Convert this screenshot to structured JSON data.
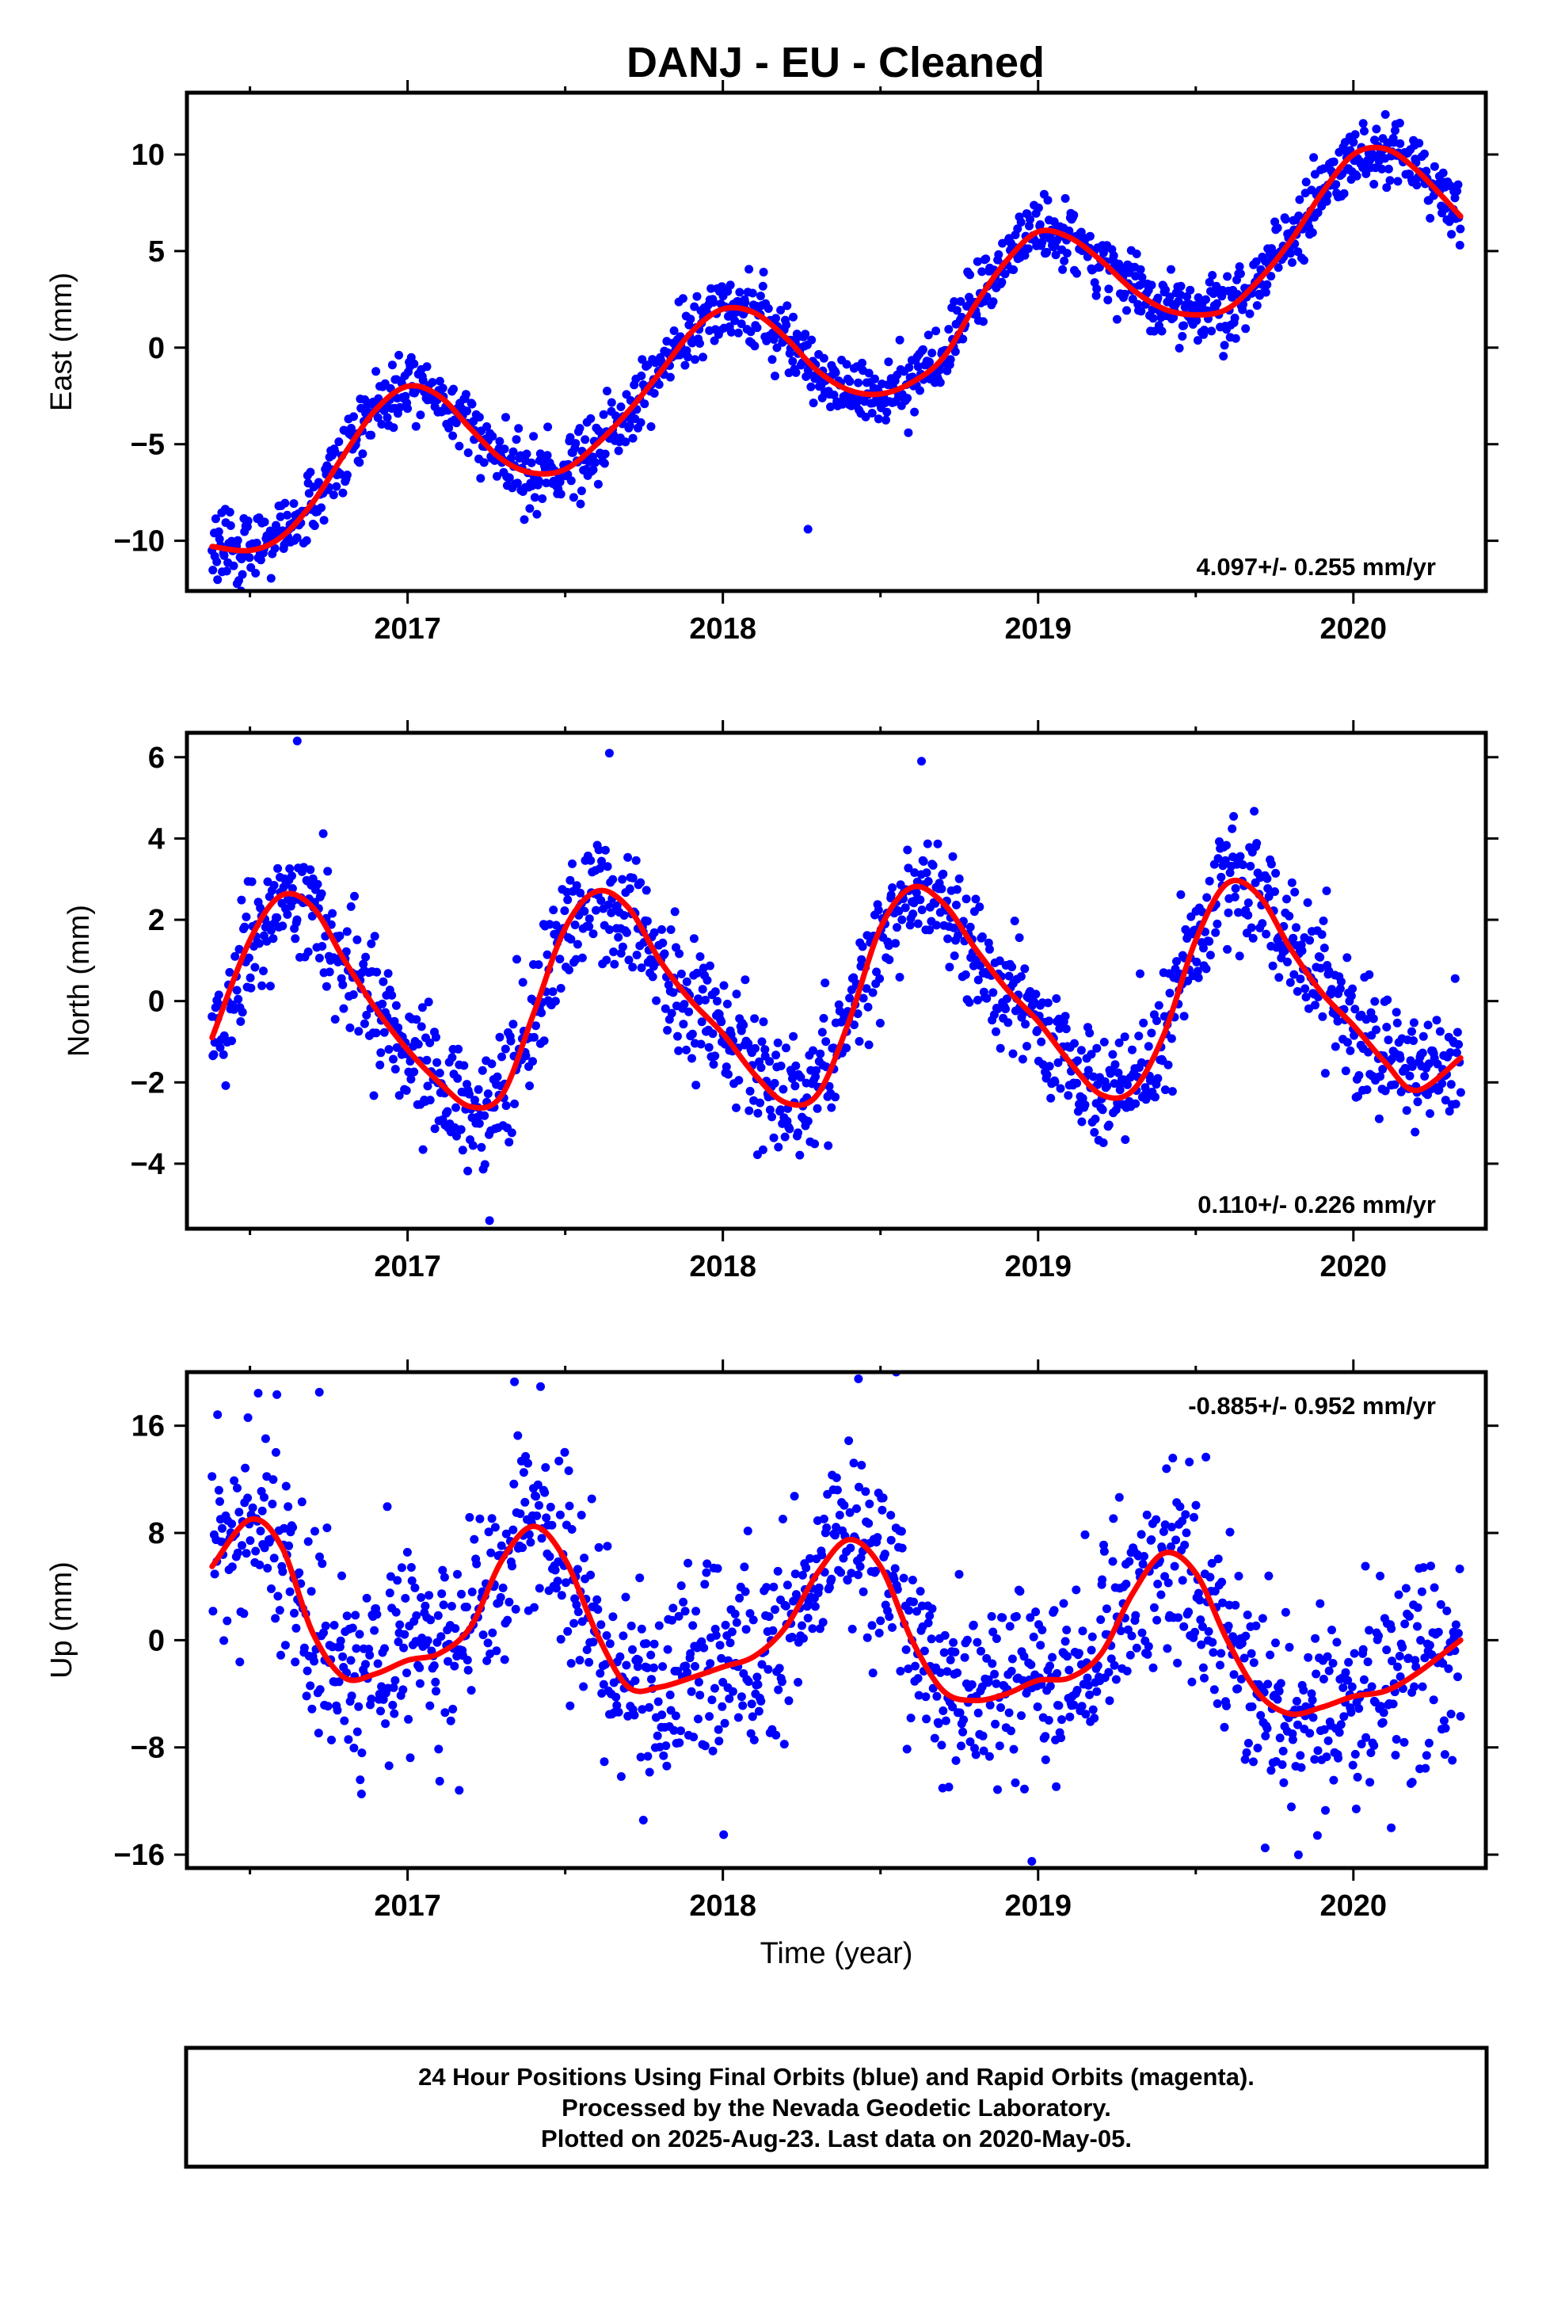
{
  "title": "DANJ  - EU - Cleaned",
  "footer": {
    "line1": "24 Hour Positions Using Final Orbits (blue) and Rapid Orbits (magenta).",
    "line2": "Processed by the Nevada Geodetic Laboratory.",
    "line3": "Plotted on 2025-Aug-23. Last data on 2020-May-05."
  },
  "colors": {
    "final_orbits": "#0000ff",
    "fit": "#ff0000"
  },
  "chart_data": [
    {
      "type": "scatter",
      "name": "east",
      "ylabel": "East (mm)",
      "xlabel": "",
      "xlim": [
        2016.3,
        2020.42
      ],
      "ylim": [
        -12.6,
        13.2
      ],
      "xticks": [
        2017,
        2018,
        2019,
        2020
      ],
      "yticks": [
        -10,
        -5,
        0,
        5,
        10
      ],
      "ytick_labels": [
        "−10",
        "−5",
        "0",
        "5",
        "10"
      ],
      "rate_label": "4.097+/- 0.255 mm/yr",
      "rate_position": "bottom-right",
      "data_start": 2016.38,
      "data_end": 2020.34,
      "fit": {
        "x": [
          2016.38,
          2016.5,
          2016.6,
          2016.7,
          2016.8,
          2016.9,
          2017.0,
          2017.1,
          2017.2,
          2017.3,
          2017.4,
          2017.5,
          2017.6,
          2017.7,
          2017.8,
          2017.9,
          2018.0,
          2018.1,
          2018.2,
          2018.3,
          2018.4,
          2018.5,
          2018.6,
          2018.7,
          2018.8,
          2018.9,
          2019.0,
          2019.1,
          2019.2,
          2019.3,
          2019.4,
          2019.5,
          2019.6,
          2019.7,
          2019.8,
          2019.9,
          2020.0,
          2020.1,
          2020.2,
          2020.34
        ],
        "y": [
          -10.3,
          -10.5,
          -9.8,
          -8.0,
          -5.5,
          -3.2,
          -2.0,
          -2.5,
          -4.2,
          -5.8,
          -6.5,
          -6.3,
          -5.0,
          -3.3,
          -1.3,
          0.8,
          2.0,
          1.8,
          0.5,
          -1.2,
          -2.2,
          -2.4,
          -1.8,
          -0.5,
          2.2,
          4.5,
          6.0,
          5.7,
          4.5,
          3.0,
          2.0,
          1.7,
          2.0,
          3.5,
          5.5,
          8.0,
          10.0,
          10.3,
          9.2,
          6.8
        ]
      },
      "scatter_sd": 0.9,
      "outliers": [
        [
          2018.27,
          -9.4
        ]
      ]
    },
    {
      "type": "scatter",
      "name": "north",
      "ylabel": "North (mm)",
      "xlabel": "",
      "xlim": [
        2016.3,
        2020.42
      ],
      "ylim": [
        -5.6,
        6.6
      ],
      "xticks": [
        2017,
        2018,
        2019,
        2020
      ],
      "yticks": [
        -4,
        -2,
        0,
        2,
        4,
        6
      ],
      "ytick_labels": [
        "−4",
        "−2",
        "0",
        "2",
        "4",
        "6"
      ],
      "rate_label": "0.110+/- 0.226 mm/yr",
      "rate_position": "bottom-right",
      "data_start": 2016.38,
      "data_end": 2020.34,
      "fit": {
        "x": [
          2016.38,
          2016.5,
          2016.6,
          2016.7,
          2016.8,
          2016.9,
          2017.0,
          2017.1,
          2017.2,
          2017.3,
          2017.4,
          2017.5,
          2017.6,
          2017.7,
          2017.8,
          2017.9,
          2018.0,
          2018.1,
          2018.2,
          2018.3,
          2018.4,
          2018.5,
          2018.6,
          2018.7,
          2018.8,
          2018.9,
          2019.0,
          2019.1,
          2019.2,
          2019.3,
          2019.4,
          2019.5,
          2019.6,
          2019.7,
          2019.8,
          2019.9,
          2020.0,
          2020.1,
          2020.2,
          2020.34
        ],
        "y": [
          -0.9,
          1.5,
          2.6,
          2.3,
          1.0,
          -0.2,
          -1.2,
          -2.0,
          -2.6,
          -2.3,
          -0.3,
          1.8,
          2.7,
          2.3,
          1.0,
          0.0,
          -0.8,
          -1.8,
          -2.5,
          -2.3,
          -0.5,
          1.8,
          2.8,
          2.4,
          1.3,
          0.3,
          -0.5,
          -1.5,
          -2.3,
          -2.2,
          -0.8,
          1.5,
          2.9,
          2.6,
          1.3,
          0.2,
          -0.6,
          -1.5,
          -2.2,
          -1.4
        ]
      },
      "scatter_sd": 0.75,
      "outliers": [
        [
          2017.26,
          -5.4
        ],
        [
          2016.65,
          6.4
        ],
        [
          2017.64,
          6.1
        ],
        [
          2018.63,
          5.9
        ]
      ]
    },
    {
      "type": "scatter",
      "name": "up",
      "ylabel": "Up (mm)",
      "xlabel": "Time (year)",
      "xlim": [
        2016.3,
        2020.42
      ],
      "ylim": [
        -17,
        20
      ],
      "xticks": [
        2017,
        2018,
        2019,
        2020
      ],
      "yticks": [
        -16,
        -8,
        0,
        8,
        16
      ],
      "ytick_labels": [
        "−16",
        "−8",
        "0",
        "8",
        "16"
      ],
      "rate_label": "-0.885+/- 0.952 mm/yr",
      "rate_position": "top-right",
      "data_start": 2016.38,
      "data_end": 2020.34,
      "fit": {
        "x": [
          2016.38,
          2016.5,
          2016.6,
          2016.7,
          2016.8,
          2016.9,
          2017.0,
          2017.1,
          2017.2,
          2017.3,
          2017.4,
          2017.5,
          2017.6,
          2017.7,
          2017.8,
          2017.9,
          2018.0,
          2018.1,
          2018.2,
          2018.3,
          2018.4,
          2018.5,
          2018.6,
          2018.7,
          2018.8,
          2018.9,
          2019.0,
          2019.1,
          2019.2,
          2019.3,
          2019.4,
          2019.5,
          2019.6,
          2019.7,
          2019.8,
          2019.9,
          2020.0,
          2020.1,
          2020.2,
          2020.34
        ],
        "y": [
          5.5,
          9.0,
          7.0,
          0.5,
          -2.8,
          -2.5,
          -1.5,
          -1.0,
          1.0,
          6.0,
          8.5,
          6.0,
          0.5,
          -3.5,
          -3.5,
          -2.8,
          -2.0,
          -1.2,
          1.0,
          5.0,
          7.5,
          5.5,
          0.0,
          -3.8,
          -4.5,
          -4.0,
          -3.0,
          -2.8,
          -1.0,
          3.5,
          6.5,
          5.0,
          0.0,
          -4.0,
          -5.5,
          -5.0,
          -4.2,
          -3.8,
          -2.5,
          0.0
        ]
      },
      "scatter_sd": 3.6,
      "outliers": [
        [
          2019.72,
          -15.5
        ],
        [
          2020.12,
          -14.0
        ],
        [
          2018.98,
          -16.5
        ],
        [
          2018.55,
          20.0
        ],
        [
          2018.43,
          19.5
        ],
        [
          2016.72,
          18.5
        ]
      ]
    }
  ]
}
